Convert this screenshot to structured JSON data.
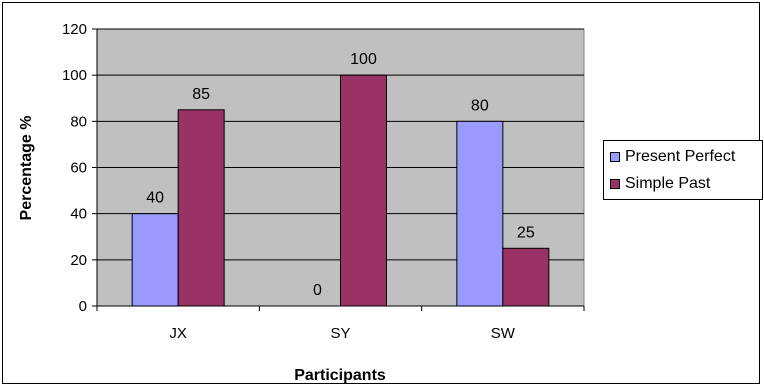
{
  "chart_data": {
    "type": "bar",
    "categories": [
      "JX",
      "SY",
      "SW"
    ],
    "series": [
      {
        "name": "Present Perfect",
        "values": [
          40,
          0,
          80
        ],
        "color": "#9999ff"
      },
      {
        "name": "Simple Past",
        "values": [
          85,
          100,
          25
        ],
        "color": "#993366"
      }
    ],
    "xlabel": "Participants",
    "ylabel": "Percentage %",
    "ylim": [
      0,
      120
    ],
    "yticks": [
      "0",
      "20",
      "40",
      "60",
      "80",
      "100",
      "120"
    ],
    "grid": true,
    "plot_background": "#c0c0c0",
    "legend_position": "right"
  }
}
